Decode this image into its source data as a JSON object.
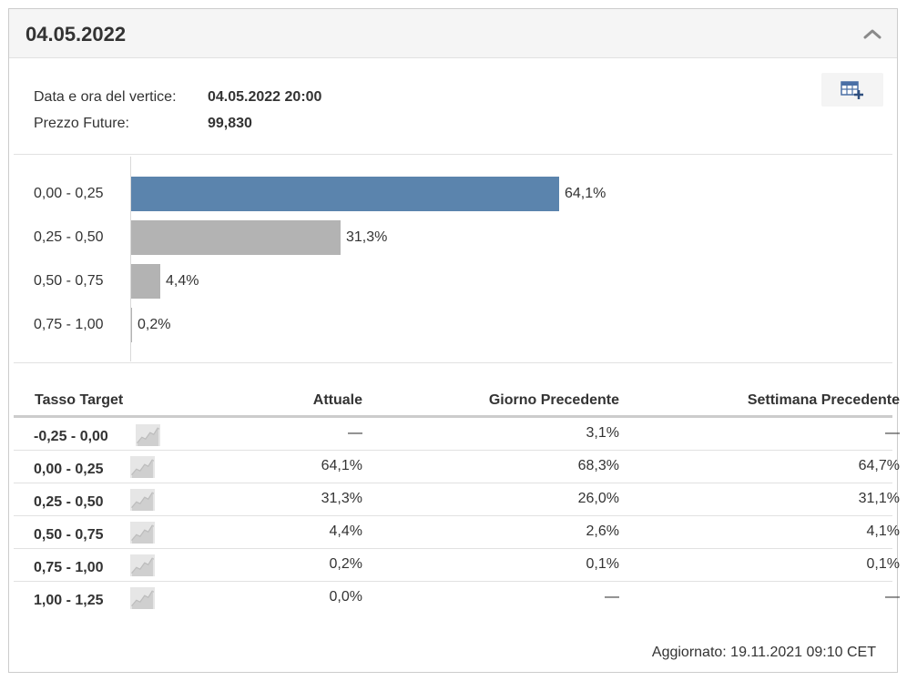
{
  "header": {
    "title": "04.05.2022"
  },
  "info": {
    "rows": [
      {
        "label": "Data e ora del vertice:",
        "value": "04.05.2022 20:00"
      },
      {
        "label": "Prezzo Future:",
        "value": "99,830"
      }
    ]
  },
  "chart_data": {
    "type": "bar",
    "orientation": "horizontal",
    "categories": [
      "0,00 - 0,25",
      "0,25 - 0,50",
      "0,50 - 0,75",
      "0,75 - 1,00"
    ],
    "values": [
      64.1,
      31.3,
      4.4,
      0.2
    ],
    "labels": [
      "64,1%",
      "31,3%",
      "4,4%",
      "0,2%"
    ],
    "colors": [
      "#5b84ad",
      "#b3b3b3",
      "#b3b3b3",
      "#b3b3b3"
    ],
    "xlim": [
      0,
      100
    ]
  },
  "table": {
    "headers": [
      "Tasso Target",
      "Attuale",
      "Giorno Precedente",
      "Settimana Precedente"
    ],
    "rows": [
      {
        "rate": "-0,25 - 0,00",
        "current": "—",
        "prev_day": "3,1%",
        "prev_week": "—"
      },
      {
        "rate": "0,00 - 0,25",
        "current": "64,1%",
        "prev_day": "68,3%",
        "prev_week": "64,7%"
      },
      {
        "rate": "0,25 - 0,50",
        "current": "31,3%",
        "prev_day": "26,0%",
        "prev_week": "31,1%"
      },
      {
        "rate": "0,50 - 0,75",
        "current": "4,4%",
        "prev_day": "2,6%",
        "prev_week": "4,1%"
      },
      {
        "rate": "0,75 - 1,00",
        "current": "0,2%",
        "prev_day": "0,1%",
        "prev_week": "0,1%"
      },
      {
        "rate": "1,00 - 1,25",
        "current": "0,0%",
        "prev_day": "—",
        "prev_week": "—"
      }
    ],
    "row_icon": "trend-chart-icon"
  },
  "footer": {
    "updated": "Aggiornato: 19.11.2021 09:10 CET"
  },
  "icons": {
    "collapse": "chevron-up-icon",
    "export": "table-add-icon"
  }
}
